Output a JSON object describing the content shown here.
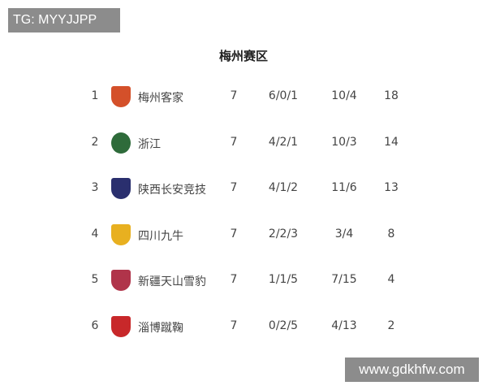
{
  "watermarks": {
    "top_left": "TG: MYYJJPP",
    "bottom_right": "www.gdkhfw.com"
  },
  "title": "梅州赛区",
  "rows": [
    {
      "rank": "1",
      "team": "梅州客家",
      "played": "7",
      "wdl": "6/0/1",
      "goals": "10/4",
      "points": "18",
      "logo_color": "#d4502a"
    },
    {
      "rank": "2",
      "team": "浙江",
      "played": "7",
      "wdl": "4/2/1",
      "goals": "10/3",
      "points": "14",
      "logo_color": "#2e6b3a"
    },
    {
      "rank": "3",
      "team": "陕西长安竞技",
      "played": "7",
      "wdl": "4/1/2",
      "goals": "11/6",
      "points": "13",
      "logo_color": "#2a2f6e"
    },
    {
      "rank": "4",
      "team": "四川九牛",
      "played": "7",
      "wdl": "2/2/3",
      "goals": "3/4",
      "points": "8",
      "logo_color": "#e8b020"
    },
    {
      "rank": "5",
      "team": "新疆天山雪豹",
      "played": "7",
      "wdl": "1/1/5",
      "goals": "7/15",
      "points": "4",
      "logo_color": "#b0344a"
    },
    {
      "rank": "6",
      "team": "淄博蹴鞠",
      "played": "7",
      "wdl": "0/2/5",
      "goals": "4/13",
      "points": "2",
      "logo_color": "#c8282a"
    }
  ]
}
